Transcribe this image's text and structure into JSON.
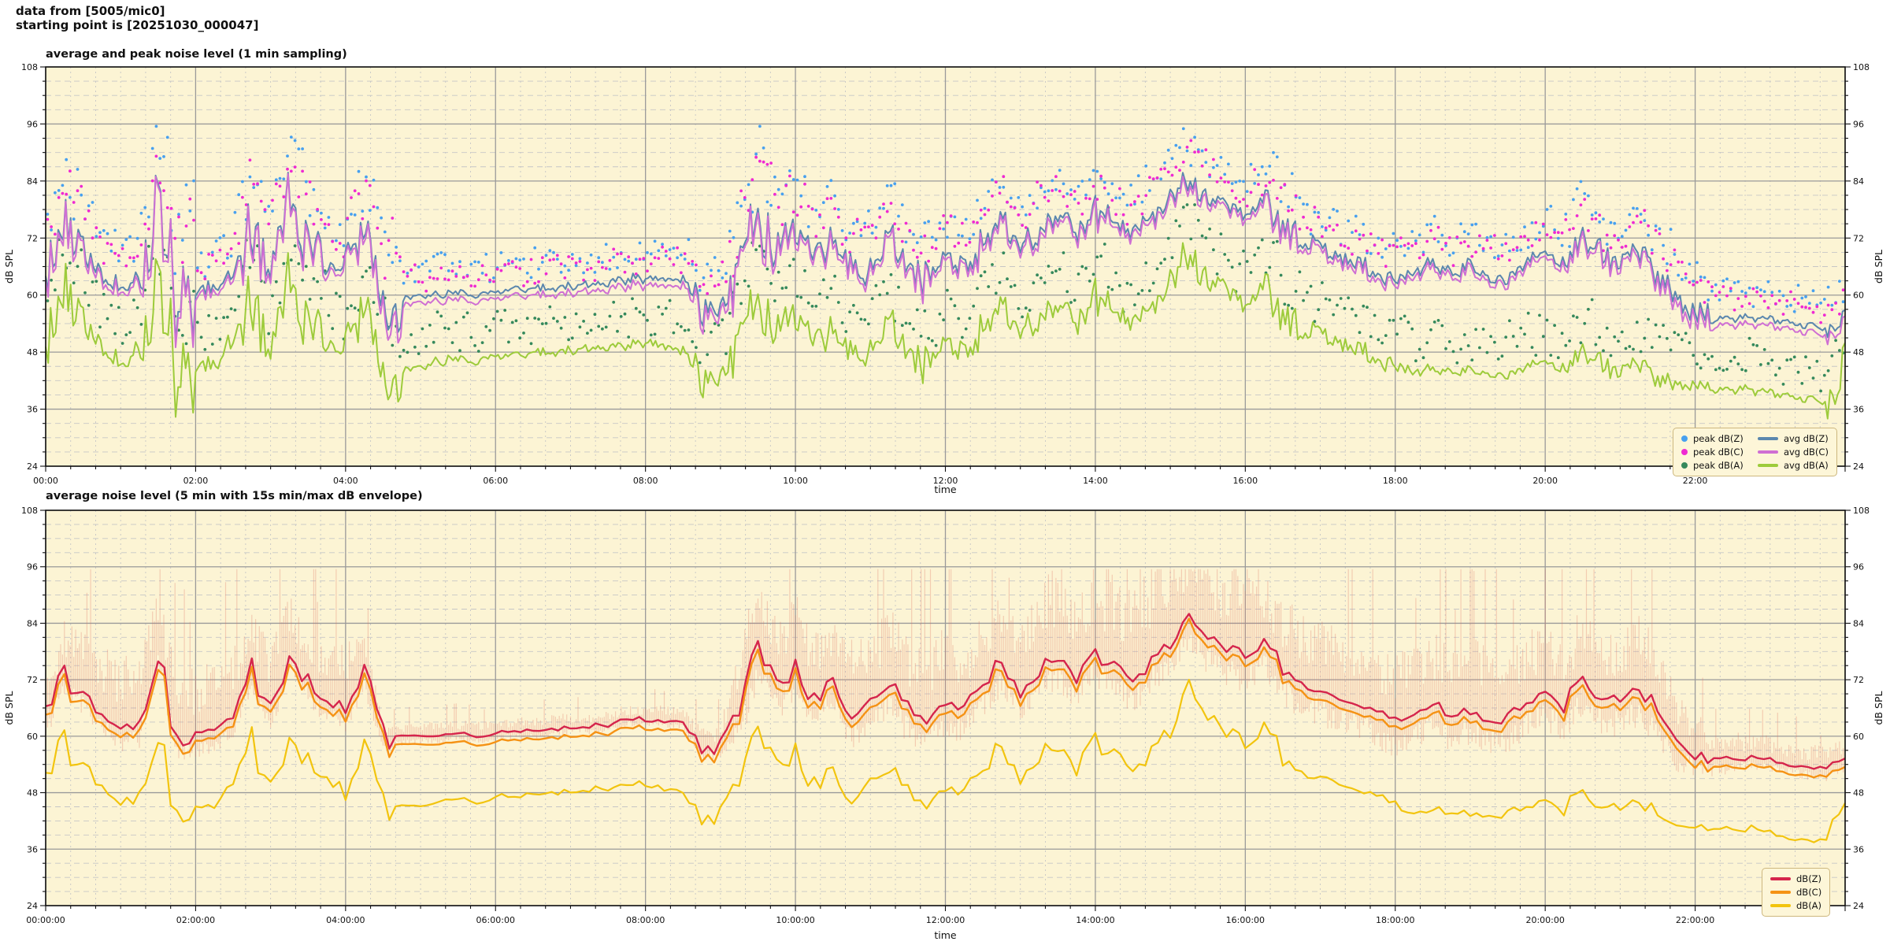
{
  "header": {
    "line1": "data from [5005/mic0]",
    "line2": "starting point is [20251030_000047]"
  },
  "chart_data": [
    {
      "type": "line+scatter",
      "title": "average and peak noise level (1 min sampling)",
      "xlabel": "time",
      "ylabel": "dB SPL",
      "plot_bg": "#fcf4d4",
      "ylim": [
        24,
        108
      ],
      "y_major_step": 12,
      "y_minor_step": 3,
      "x_total_min": 1440,
      "x_major_step_min": 120,
      "x_minor_step_min": 20,
      "x_tick_labels": [
        "00:00",
        "02:00",
        "04:00",
        "06:00",
        "08:00",
        "10:00",
        "12:00",
        "14:00",
        "16:00",
        "18:00",
        "20:00",
        "22:00"
      ],
      "sample_step_min": 15,
      "line_step_min": 2,
      "series": [
        {
          "name": "avg dB(Z)",
          "color": "#5b87ae",
          "width": 2,
          "noise_base": 0.7,
          "noise_gain": 0.5,
          "clamp": [
            50,
            90
          ],
          "values": [
            63,
            74,
            70,
            65,
            62,
            63,
            79,
            60,
            60,
            62,
            64,
            75,
            65,
            79,
            72,
            68,
            66,
            74,
            59,
            59.5,
            60,
            60,
            60.5,
            60,
            60.5,
            61,
            61,
            61.5,
            62,
            62,
            62.5,
            63.5,
            63.5,
            63.5,
            63,
            57,
            57.5,
            65,
            78,
            70,
            75,
            68,
            72,
            65,
            66,
            72,
            66,
            63,
            68,
            65,
            72,
            75,
            70,
            74,
            77,
            73,
            78,
            75,
            72,
            77,
            80,
            85,
            81,
            78,
            77,
            80,
            74,
            71,
            70,
            68,
            67,
            65,
            63,
            65,
            67,
            64,
            66,
            63,
            64,
            67,
            69,
            66,
            72,
            68,
            67,
            70,
            65,
            60,
            56,
            55.5,
            55,
            55.5,
            55,
            54,
            53.5,
            53,
            55
          ]
        },
        {
          "name": "avg dB(C)",
          "color": "#cf6fd3",
          "width": 2,
          "noise_base": 0.7,
          "noise_gain": 0.55,
          "clamp": [
            49,
            89
          ],
          "values": [
            62,
            73,
            69,
            64,
            61,
            62,
            78,
            59,
            59,
            61,
            63,
            74,
            64,
            78,
            71,
            67,
            65,
            73,
            57.6,
            58.1,
            58.6,
            58.6,
            59.1,
            58.6,
            59.1,
            59.6,
            59.6,
            60.1,
            60.6,
            60.6,
            61.1,
            62.1,
            62.1,
            62.1,
            61.6,
            55.6,
            56.1,
            64,
            77,
            69,
            74,
            67,
            71,
            64,
            65,
            71,
            65,
            62,
            67,
            64,
            71,
            74,
            69,
            73,
            76,
            72,
            77,
            74,
            71,
            76,
            79,
            84,
            80,
            77,
            76,
            79,
            73,
            70,
            69,
            67,
            66,
            64,
            62,
            64,
            66,
            63,
            65,
            62,
            63,
            66,
            68,
            65,
            71,
            67,
            66,
            69,
            64,
            58.6,
            54.6,
            54.1,
            53.6,
            54.1,
            53.6,
            52.6,
            52.1,
            51.6,
            53.6
          ]
        },
        {
          "name": "avg dB(A)",
          "color": "#9dcb3b",
          "width": 2,
          "noise_base": 0.8,
          "noise_gain": 0.5,
          "clamp": [
            34,
            76
          ],
          "values": [
            48,
            60,
            55,
            50,
            46,
            48,
            62,
            44,
            44,
            46,
            50,
            60,
            48,
            62,
            55,
            52,
            48,
            58,
            44,
            44.5,
            45,
            46,
            46.5,
            46,
            47,
            47,
            47.5,
            48,
            48.5,
            48.5,
            49,
            49.5,
            50,
            49.5,
            48,
            42,
            43,
            50,
            60,
            53,
            57,
            50,
            53,
            47,
            49,
            54,
            48,
            45,
            50,
            47,
            54,
            57,
            52,
            56,
            58,
            54,
            60,
            56,
            53,
            58,
            62,
            70,
            64,
            60,
            58,
            62,
            55,
            52,
            52,
            50,
            49,
            47,
            45,
            44,
            44.5,
            43.5,
            44,
            43,
            43.5,
            45,
            46,
            44,
            48,
            45,
            44,
            46,
            43,
            41.5,
            41,
            40.5,
            40,
            40.5,
            39.5,
            38.5,
            38,
            37.5,
            45
          ]
        }
      ],
      "scatter": [
        {
          "name": "peak dB(Z)",
          "color": "#47a0ef",
          "base": 0,
          "interval_min": 3,
          "offset_min": 2,
          "offset_rand": 6.5,
          "activity_gain": 0.9,
          "cap": 95.5
        },
        {
          "name": "peak dB(C)",
          "color": "#ef2ad2",
          "base": 1,
          "interval_min": 3,
          "offset_min": 2,
          "offset_rand": 6,
          "activity_gain": 0.85,
          "cap": 94.5
        },
        {
          "name": "peak dB(A)",
          "color": "#35895c",
          "base": 2,
          "interval_min": 3,
          "offset_min": 1.5,
          "offset_rand": 9,
          "activity_gain": 0.55,
          "cap": 79
        }
      ],
      "legend": [
        {
          "label": "peak dB(Z)",
          "marker": "dot",
          "color": "#47a0ef"
        },
        {
          "label": "peak dB(C)",
          "marker": "dot",
          "color": "#ef2ad2"
        },
        {
          "label": "peak dB(A)",
          "marker": "dot",
          "color": "#35895c"
        },
        {
          "label": "avg dB(Z)",
          "marker": "line",
          "color": "#5b87ae"
        },
        {
          "label": "avg dB(C)",
          "marker": "line",
          "color": "#cf6fd3"
        },
        {
          "label": "avg dB(A)",
          "marker": "line",
          "color": "#9dcb3b"
        }
      ]
    },
    {
      "type": "line+envelope",
      "title": "average noise level (5 min with 15s min/max dB envelope)",
      "xlabel": "time",
      "ylabel": "dB SPL",
      "plot_bg": "#fcf4d4",
      "ylim": [
        24,
        108
      ],
      "y_major_step": 12,
      "y_minor_step": 3,
      "x_total_min": 1440,
      "x_major_step_min": 120,
      "x_minor_step_min": 20,
      "x_tick_labels": [
        "00:00:00",
        "02:00:00",
        "04:00:00",
        "06:00:00",
        "08:00:00",
        "10:00:00",
        "12:00:00",
        "14:00:00",
        "16:00:00",
        "18:00:00",
        "20:00:00",
        "22:00:00"
      ],
      "sample_step_min": 15,
      "line_step_min": 5,
      "series": [
        {
          "name": "dB(Z)",
          "color": "#d5254c",
          "width": 2.4,
          "noise_base": 0.45,
          "noise_gain": 0.28,
          "clamp": [
            50,
            86
          ],
          "values": [
            63,
            74,
            70,
            65,
            62,
            63,
            79,
            60,
            60,
            62,
            64,
            75,
            65,
            79,
            72,
            68,
            66,
            74,
            59,
            59.5,
            60,
            60,
            60.5,
            60,
            60.5,
            61,
            61,
            61.5,
            62,
            62,
            62.5,
            63.5,
            63.5,
            63.5,
            63,
            57,
            57.5,
            65,
            78,
            70,
            75,
            68,
            72,
            65,
            66,
            72,
            66,
            63,
            68,
            65,
            72,
            75,
            70,
            74,
            77,
            73,
            78,
            75,
            72,
            77,
            80,
            85,
            81,
            78,
            77,
            80,
            74,
            71,
            70,
            68,
            67,
            65,
            63,
            65,
            67,
            64,
            66,
            63,
            64,
            67,
            69,
            66,
            72,
            68,
            67,
            70,
            65,
            60,
            56,
            55.5,
            55,
            55.5,
            55,
            54,
            53.5,
            53,
            55
          ]
        },
        {
          "name": "dB(C)",
          "color": "#f59214",
          "width": 2.4,
          "noise_base": 0.45,
          "noise_gain": 0.28,
          "clamp": [
            48,
            85
          ],
          "values": [
            61.2,
            72.2,
            68.2,
            63.2,
            60.2,
            61.2,
            77.2,
            58.2,
            58.2,
            60.2,
            62.2,
            73.2,
            63.2,
            77.2,
            70.2,
            66.2,
            64.2,
            72.2,
            57.2,
            57.7,
            58.2,
            58.2,
            58.7,
            58.2,
            58.7,
            59.2,
            59.2,
            59.7,
            60.2,
            60.2,
            60.7,
            61.7,
            61.7,
            61.7,
            61.2,
            55.2,
            55.7,
            63.2,
            76.2,
            68.2,
            73.2,
            66.2,
            70.2,
            63.2,
            64.2,
            70.2,
            64.2,
            61.2,
            66.2,
            63.2,
            70.2,
            73.2,
            68.2,
            72.2,
            75.2,
            71.2,
            76.2,
            73.2,
            70.2,
            75.2,
            78.2,
            83.2,
            79.2,
            76.2,
            75.2,
            78.2,
            72.2,
            69.2,
            68.2,
            66.2,
            65.2,
            63.2,
            61.2,
            63.2,
            65.2,
            62.2,
            64.2,
            61.2,
            62.2,
            65.2,
            67.2,
            64.2,
            70.2,
            66.2,
            65.2,
            68.2,
            63.2,
            58.2,
            54.2,
            53.7,
            53.2,
            53.7,
            53.2,
            52.2,
            51.7,
            51.2,
            53.2
          ]
        },
        {
          "name": "dB(A)",
          "color": "#f2c40e",
          "width": 2.2,
          "noise_base": 0.6,
          "noise_gain": 0.32,
          "clamp": [
            34,
            72
          ],
          "values": [
            48,
            60,
            55,
            50,
            46,
            48,
            62,
            44,
            44,
            46,
            50,
            60,
            48,
            62,
            55,
            52,
            48,
            58,
            44,
            44.5,
            45,
            46,
            46.5,
            46,
            47,
            47,
            47.5,
            48,
            48.5,
            48.5,
            49,
            49.5,
            50,
            49.5,
            48,
            42,
            43,
            50,
            60,
            53,
            57,
            50,
            53,
            47,
            49,
            54,
            48,
            45,
            50,
            47,
            54,
            57,
            52,
            56,
            58,
            54,
            60,
            56,
            53,
            58,
            62,
            70,
            64,
            60,
            58,
            62,
            55,
            52,
            52,
            50,
            49,
            47,
            45,
            44,
            44.5,
            43.5,
            44,
            43,
            43.5,
            45,
            46,
            44,
            48,
            45,
            44,
            46,
            43,
            41.5,
            41,
            40.5,
            40,
            40.5,
            39.5,
            38.5,
            38,
            37.5,
            45
          ]
        }
      ],
      "envelope": {
        "color": "#dd6f60",
        "opacity": 0.3,
        "base": 0,
        "spike_gain": 5,
        "up": [
          8,
          9,
          10,
          12,
          12,
          14,
          10,
          12,
          12,
          12,
          12,
          10,
          12,
          9,
          10,
          10,
          12,
          9,
          2.5,
          2.5,
          2.5,
          2.5,
          2.5,
          2.5,
          2.5,
          2.5,
          2.5,
          2.5,
          2.5,
          2.5,
          2.5,
          2.5,
          2.5,
          2.5,
          2.5,
          4,
          4,
          13,
          13,
          13,
          13,
          13,
          13,
          13,
          13,
          13,
          13,
          13,
          13,
          13,
          13,
          13,
          16,
          16,
          16,
          16,
          16,
          16,
          16,
          16,
          16,
          16,
          16,
          16,
          16,
          13,
          13,
          13,
          13,
          13,
          13,
          13,
          13,
          13,
          13,
          13,
          13,
          13,
          13,
          13,
          13,
          13,
          13,
          13,
          13,
          13,
          13,
          8,
          8,
          4,
          4,
          4,
          4,
          4,
          4,
          4,
          4
        ],
        "down": [
          5,
          5,
          5,
          5,
          5,
          5,
          5,
          5,
          5,
          5,
          5,
          5,
          5,
          5,
          5,
          5,
          5,
          5,
          1.5,
          1.5,
          1.5,
          1.5,
          1.5,
          1.5,
          1.5,
          1.5,
          1.5,
          1.5,
          1.5,
          1.5,
          1.5,
          1.5,
          1.5,
          1.5,
          1.5,
          2,
          2,
          7,
          7,
          7,
          7,
          7,
          7,
          7,
          7,
          7,
          7,
          7,
          7,
          7,
          7,
          7,
          7,
          7,
          7,
          7,
          7,
          7,
          7,
          7,
          7,
          7,
          7,
          7,
          7,
          7,
          7,
          7,
          7,
          7,
          7,
          7,
          7,
          7,
          7,
          7,
          7,
          7,
          7,
          7,
          7,
          7,
          7,
          7,
          7,
          7,
          7,
          7,
          4,
          4,
          2.5,
          2.5,
          2.5,
          2.5,
          2.5,
          2.5,
          2.5,
          2.5
        ]
      },
      "legend": [
        {
          "label": "dB(Z)",
          "marker": "line",
          "color": "#d5254c"
        },
        {
          "label": "dB(C)",
          "marker": "line",
          "color": "#f59214"
        },
        {
          "label": "dB(A)",
          "marker": "line",
          "color": "#f2c40e"
        }
      ]
    }
  ]
}
